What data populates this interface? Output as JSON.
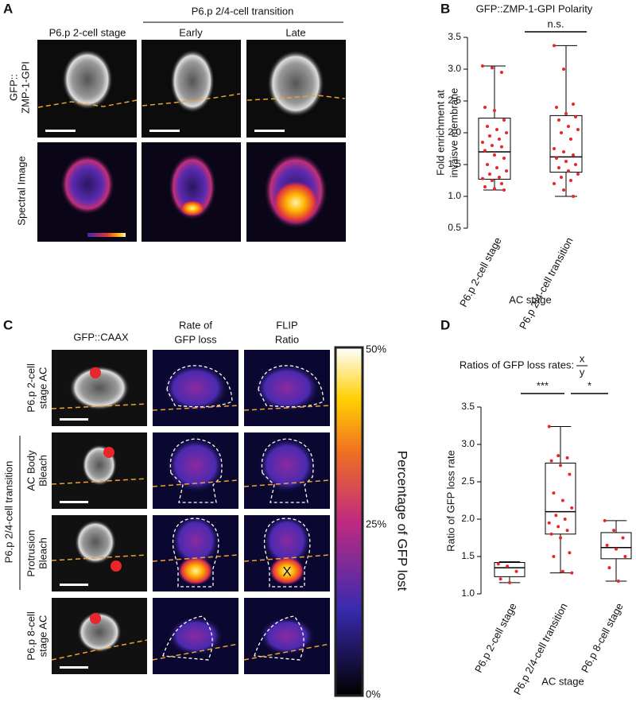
{
  "panel_labels": [
    "A",
    "B",
    "C",
    "D"
  ],
  "panel_a": {
    "stage_label": "P6.p 2-cell stage",
    "group_label": "P6.p 2/4-cell transition",
    "col_labels": [
      "Early",
      "Late"
    ],
    "row_labels": [
      [
        "GFP::",
        "ZMP-1-GPI"
      ],
      [
        "Spectral Image"
      ]
    ]
  },
  "panel_c": {
    "col_labels": [
      [
        "GFP::CAAX"
      ],
      [
        "Rate of",
        "GFP loss"
      ],
      [
        "FLIP",
        "Ratio"
      ]
    ],
    "row_labels": [
      [
        "P6.p 2-cell",
        "stage AC"
      ],
      [
        "AC Body",
        "Bleach"
      ],
      [
        "Protrusion",
        "Bleach"
      ],
      [
        "P6.p 8-cell",
        "stage AC"
      ]
    ],
    "group_label": "P6.p 2/4-cell transition",
    "marker": "X",
    "colorbar": {
      "labels": [
        "50%",
        "25%",
        "0%"
      ],
      "title": "Percentage of GFP lost"
    }
  },
  "chart_data": [
    {
      "type": "box",
      "title": "GFP::ZMP-1-GPI Polarity",
      "ylabel": [
        "Fold enrichment at",
        "invaisve membrane"
      ],
      "xlabel": "AC stage",
      "categories": [
        "P6.p 2-cell stage",
        "P6.p 2/4-cell transition"
      ],
      "boxes": [
        {
          "whislo": 1.1,
          "q1": 1.27,
          "med": 1.7,
          "q3": 2.23,
          "whishi": 3.05,
          "points": [
            3.05,
            3.02,
            2.95,
            2.4,
            2.35,
            2.2,
            2.1,
            2.05,
            2.0,
            1.95,
            1.9,
            1.85,
            1.8,
            1.78,
            1.72,
            1.65,
            1.6,
            1.5,
            1.45,
            1.4,
            1.35,
            1.3,
            1.28,
            1.25,
            1.2,
            1.15,
            1.12,
            1.1
          ]
        },
        {
          "whislo": 1.0,
          "q1": 1.38,
          "med": 1.62,
          "q3": 2.27,
          "whishi": 3.37,
          "points": [
            3.37,
            3.0,
            2.45,
            2.4,
            2.3,
            2.25,
            2.2,
            2.1,
            2.05,
            2.0,
            1.9,
            1.75,
            1.7,
            1.65,
            1.6,
            1.55,
            1.5,
            1.45,
            1.4,
            1.35,
            1.3,
            1.25,
            1.2,
            1.1,
            1.0
          ]
        }
      ],
      "box_color": "#000000",
      "point_color": "#e8262b",
      "ylim": [
        0.5,
        3.5
      ],
      "yticks": [
        0.5,
        {
          "value": 1,
          "label": "1.0"
        },
        1.5,
        {
          "value": 2,
          "label": "2.0"
        },
        2.5,
        {
          "value": 3,
          "label": "3.0"
        },
        3.5
      ],
      "annotations": [
        "n.s."
      ]
    },
    {
      "type": "box",
      "title": "Ratios of GFP loss rates:",
      "title_fraction": [
        "x",
        "y"
      ],
      "ylabel": [
        "Ratio of GFP loss rate"
      ],
      "xlabel": "AC stage",
      "categories": [
        "P6.p 2-cell stage",
        "P6.p 2/4-cell transition",
        "P6.p 8-cell stage"
      ],
      "boxes": [
        {
          "whislo": 1.15,
          "q1": 1.23,
          "med": 1.35,
          "q3": 1.42,
          "whishi": 1.43,
          "points": [
            1.4,
            1.37,
            1.3,
            1.2,
            1.15
          ]
        },
        {
          "whislo": 1.28,
          "q1": 1.8,
          "med": 2.1,
          "q3": 2.75,
          "whishi": 3.24,
          "points": [
            3.24,
            2.85,
            2.82,
            2.78,
            2.72,
            2.6,
            2.35,
            2.25,
            2.15,
            2.05,
            2.0,
            1.95,
            1.9,
            1.85,
            1.8,
            1.75,
            1.55,
            1.5,
            1.3,
            1.28
          ]
        },
        {
          "whislo": 1.17,
          "q1": 1.47,
          "med": 1.62,
          "q3": 1.82,
          "whishi": 1.98,
          "points": [
            1.98,
            1.85,
            1.75,
            1.65,
            1.6,
            1.5,
            1.35,
            1.17
          ]
        }
      ],
      "box_color": "#000000",
      "point_color": "#e8262b",
      "ylim": [
        1,
        3.5
      ],
      "yticks": [
        {
          "value": 1,
          "label": "1.0"
        },
        1.5,
        {
          "value": 2,
          "label": "2.0"
        },
        2.5,
        {
          "value": 3,
          "label": "3.0"
        },
        3.5
      ],
      "annotations": [
        "***",
        "*"
      ]
    }
  ]
}
